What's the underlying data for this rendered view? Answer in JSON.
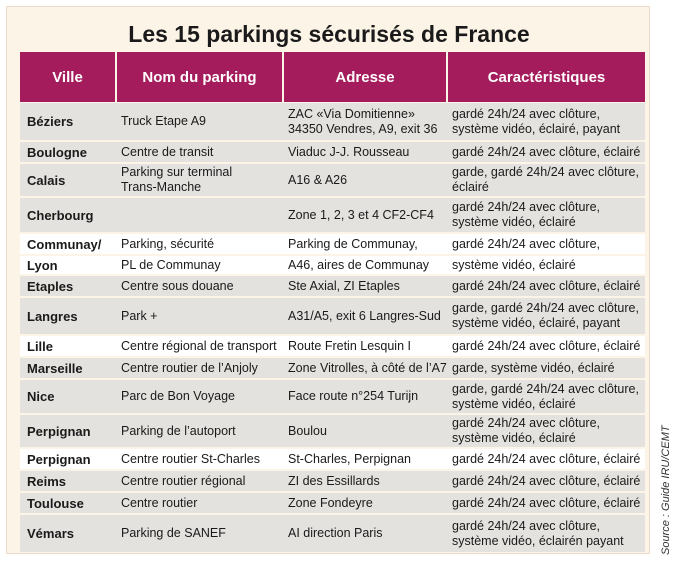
{
  "title": "Les 15 parkings sécurisés de France",
  "source": "Source : Guide IRU/CEMT",
  "colors": {
    "header": "#a51c5c",
    "row_shade": "#e4e2df",
    "background": "#fdf4e8"
  },
  "columns": [
    "Ville",
    "Nom du parking",
    "Adresse",
    "Caractéristiques"
  ],
  "rows": [
    {
      "ville": "Béziers",
      "nom": [
        [
          "Truck Etape A9"
        ]
      ],
      "adresse": [
        [
          "ZAC «Via Domitienne»",
          "34350 Vendres, A9, exit 36"
        ]
      ],
      "carac": [
        [
          "gardé 24h/24 avec clôture,",
          "système vidéo, éclairé, payant"
        ]
      ]
    },
    {
      "ville": "Boulogne",
      "nom": [
        [
          "Centre de transit"
        ]
      ],
      "adresse": [
        [
          "Viaduc J-J. Rousseau"
        ]
      ],
      "carac": [
        [
          "gardé 24h/24 avec clôture, éclairé"
        ]
      ]
    },
    {
      "ville": "Calais",
      "nom": [
        [
          "Parking sur terminal",
          "Trans-Manche"
        ]
      ],
      "adresse": [
        [
          "A16 & A26"
        ]
      ],
      "carac": [
        [
          "garde, gardé 24h/24 avec clôture,",
          "éclairé"
        ]
      ]
    },
    {
      "ville": "Cherbourg",
      "nom": [
        [
          ""
        ]
      ],
      "adresse": [
        [
          "Zone 1, 2, 3 et 4 CF2-CF4"
        ]
      ],
      "carac": [
        [
          "gardé 24h/24 avec clôture,",
          "système vidéo, éclairé"
        ]
      ]
    },
    {
      "ville": "Communay/",
      "nom": [
        [
          "Parking, sécurité"
        ]
      ],
      "adresse": [
        [
          "Parking de Communay,"
        ]
      ],
      "carac": [
        [
          "gardé 24h/24 avec clôture,"
        ]
      ]
    },
    {
      "ville": "Lyon",
      "nom": [
        [
          "PL de Communay"
        ]
      ],
      "adresse": [
        [
          " A46, aires de Communay"
        ]
      ],
      "carac": [
        [
          "système vidéo, éclairé"
        ]
      ]
    },
    {
      "ville": "Etaples",
      "nom": [
        [
          "Centre sous douane"
        ]
      ],
      "adresse": [
        [
          "Ste Axial, ZI Etaples"
        ]
      ],
      "carac": [
        [
          "gardé 24h/24 avec clôture, éclairé"
        ]
      ]
    },
    {
      "ville": "Langres",
      "nom": [
        [
          "Park +"
        ]
      ],
      "adresse": [
        [
          "A31/A5, exit 6 Langres-Sud"
        ]
      ],
      "carac": [
        [
          "garde, gardé 24h/24 avec clôture,",
          "système vidéo, éclairé, payant"
        ]
      ]
    },
    {
      "ville": "Lille",
      "nom": [
        [
          "Centre régional de transport"
        ]
      ],
      "adresse": [
        [
          "Route Fretin Lesquin I"
        ]
      ],
      "carac": [
        [
          "gardé 24h/24 avec clôture, éclairé"
        ]
      ]
    },
    {
      "ville": "Marseille",
      "nom": [
        [
          "Centre routier de l’Anjoly"
        ]
      ],
      "adresse": [
        [
          "Zone Vitrolles, à côté de l’A7"
        ]
      ],
      "carac": [
        [
          "garde, système vidéo, éclairé"
        ]
      ]
    },
    {
      "ville": "Nice",
      "nom": [
        [
          "Parc de Bon Voyage"
        ]
      ],
      "adresse": [
        [
          "Face route n°254 Turijn"
        ]
      ],
      "carac": [
        [
          "garde, gardé 24h/24 avec clôture,",
          "système vidéo, éclairé"
        ]
      ]
    },
    {
      "ville": "Perpignan",
      "nom": [
        [
          "Parking de l’autoport"
        ]
      ],
      "adresse": [
        [
          "Boulou"
        ]
      ],
      "carac": [
        [
          "gardé 24h/24 avec clôture,",
          "système vidéo, éclairé"
        ]
      ]
    },
    {
      "ville": "Perpignan",
      "nom": [
        [
          "Centre routier St-Charles"
        ]
      ],
      "adresse": [
        [
          "St-Charles, Perpignan"
        ]
      ],
      "carac": [
        [
          "gardé 24h/24 avec clôture, éclairé"
        ]
      ]
    },
    {
      "ville": "Reims",
      "nom": [
        [
          "Centre routier régional"
        ]
      ],
      "adresse": [
        [
          "ZI des Essillards"
        ]
      ],
      "carac": [
        [
          "gardé 24h/24 avec clôture, éclairé"
        ]
      ]
    },
    {
      "ville": "Toulouse",
      "nom": [
        [
          "Centre routier"
        ]
      ],
      "adresse": [
        [
          "Zone Fondeyre"
        ]
      ],
      "carac": [
        [
          "gardé 24h/24 avec clôture, éclairé"
        ]
      ]
    },
    {
      "ville": "Vémars",
      "nom": [
        [
          "Parking de SANEF"
        ]
      ],
      "adresse": [
        [
          "AI direction Paris"
        ]
      ],
      "carac": [
        [
          "gardé 24h/24 avec clôture,",
          "système vidéo, éclairén payant"
        ]
      ]
    }
  ]
}
